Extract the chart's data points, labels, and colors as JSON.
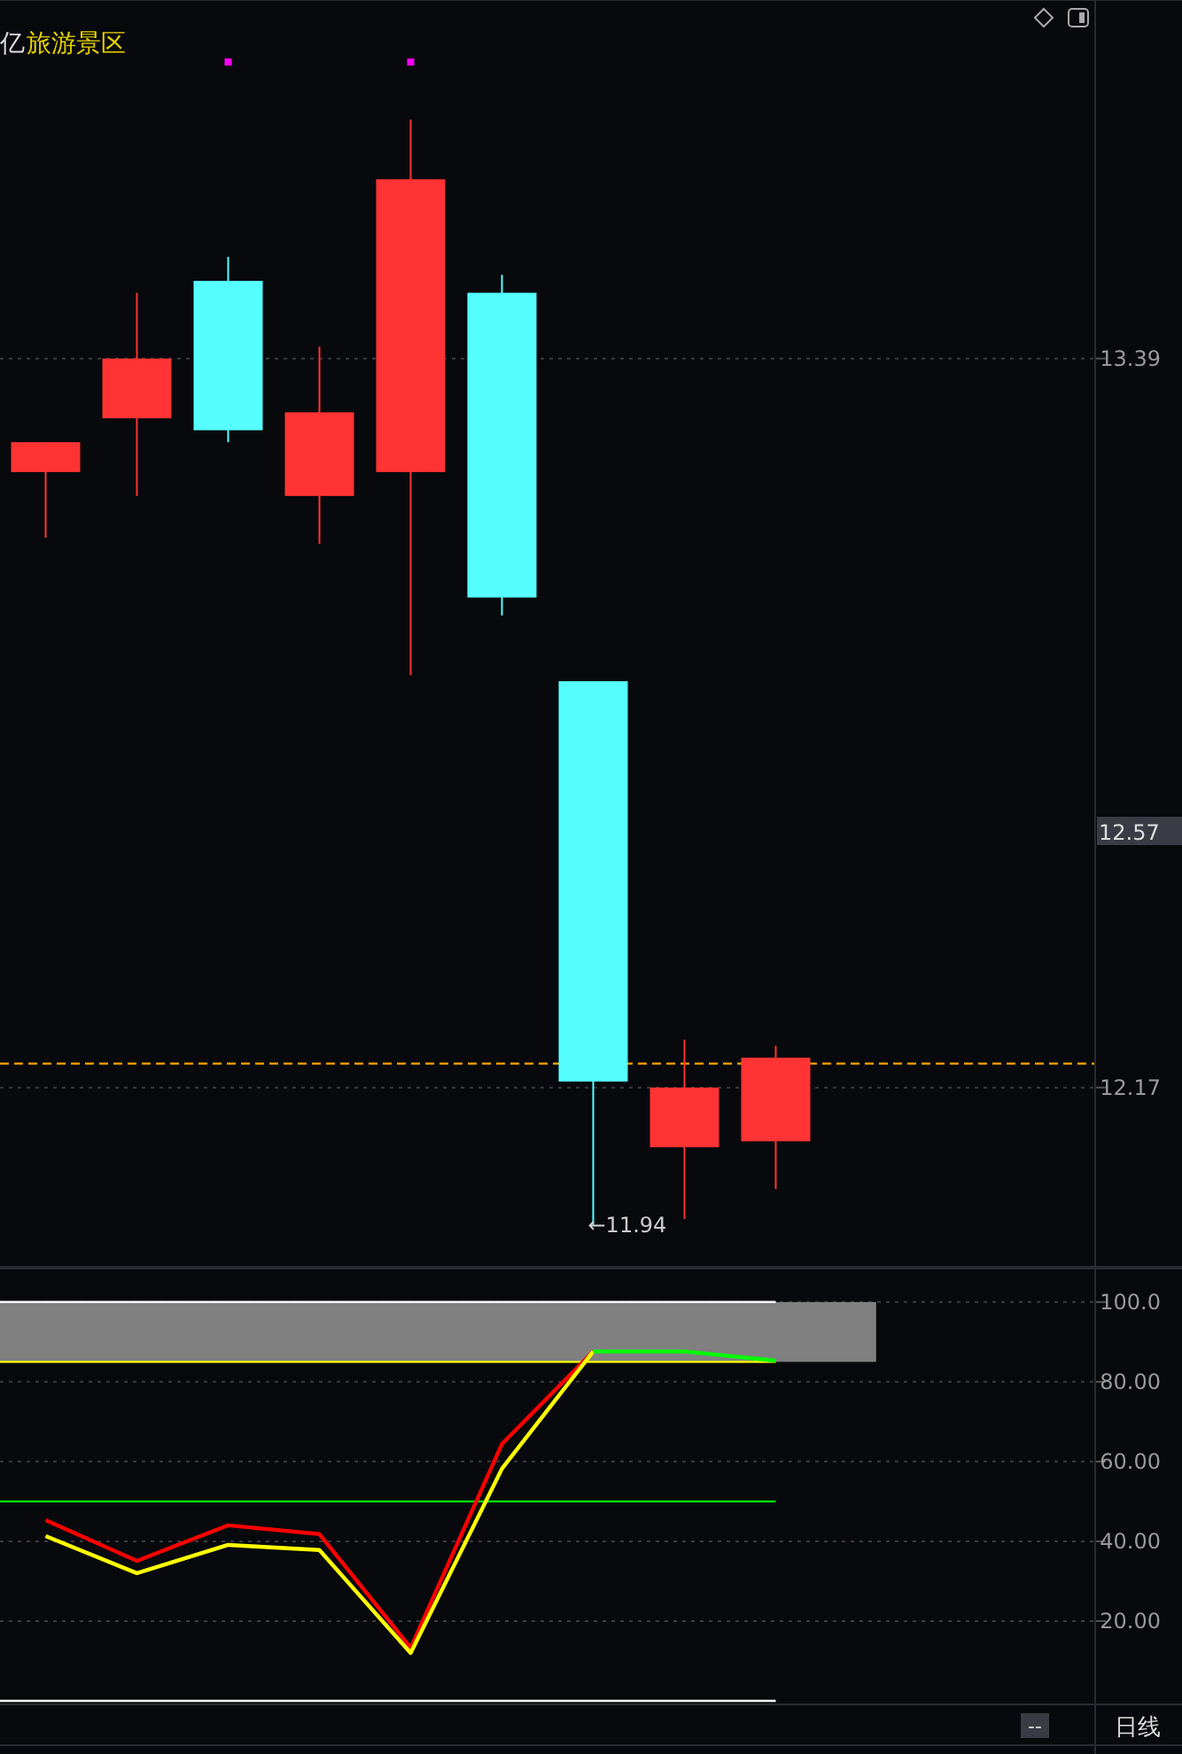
{
  "chart_data": [
    {
      "type": "candlestick",
      "title": "亿",
      "subtitle": "旅游景区",
      "categories": [
        null,
        null,
        null,
        null,
        null,
        null,
        null,
        null,
        null,
        null,
        null,
        null
      ],
      "ohlc": [
        [
          13.2,
          13.25,
          13.09,
          13.25
        ],
        [
          13.29,
          13.5,
          13.16,
          13.39
        ],
        [
          13.52,
          13.56,
          13.25,
          13.27
        ],
        [
          13.16,
          13.41,
          13.08,
          13.3
        ],
        [
          13.2,
          13.79,
          12.86,
          13.69
        ],
        [
          13.5,
          13.53,
          12.96,
          12.99
        ],
        [
          12.85,
          12.85,
          11.94,
          12.18
        ],
        [
          12.07,
          12.25,
          11.95,
          12.17
        ],
        [
          12.08,
          12.24,
          12.0,
          12.22
        ],
        null,
        null,
        null
      ],
      "colors": [
        "#ff3333",
        "#ff3333",
        "#55ffff",
        "#ff3333",
        "#ff3333",
        "#55ffff",
        "#55ffff",
        "#ff3333",
        "#ff3333",
        null,
        null,
        null
      ],
      "ylim": [
        11.87,
        13.99
      ],
      "yticks": [
        13.39,
        12.17
      ],
      "grid": "y",
      "tick_labels": "y",
      "ref_lines": [
        {
          "axis": "y",
          "value": 12.21,
          "color": "#ffa500",
          "line_style": "dashed"
        }
      ],
      "annotations": [
        "←11.94",
        "12.57"
      ]
    },
    {
      "type": "line",
      "categories": [
        null,
        null,
        null,
        null,
        null,
        null,
        null,
        null,
        null,
        null,
        null,
        null
      ],
      "marker": "none",
      "line_style": "solid",
      "series": [
        {
          "color": "#ff0000",
          "values": [
            45.3,
            35.1,
            44.0,
            41.8,
            13.3,
            64.4,
            87.6,
            null,
            null,
            null,
            null,
            null
          ]
        },
        {
          "color": "#ffff00",
          "values": [
            41.3,
            32.0,
            39.1,
            37.8,
            12.0,
            58.2,
            87.6,
            null,
            null,
            null,
            null,
            null
          ]
        },
        {
          "color": "#00ff00",
          "values": [
            null,
            null,
            null,
            null,
            null,
            null,
            87.6,
            87.6,
            85.3,
            null,
            null,
            null
          ]
        }
      ],
      "ylim": [
        -0.9,
        108.4
      ],
      "yticks": [
        {
          "value": 100,
          "label": "100.0"
        },
        {
          "value": 80,
          "label": "80.00"
        },
        {
          "value": 60,
          "label": "60.00"
        },
        {
          "value": 40,
          "label": "40.00"
        },
        {
          "value": 20,
          "label": "20.00"
        }
      ],
      "grid": "y",
      "tick_labels": "y",
      "bands": [
        {
          "axis": "y",
          "from": 85,
          "to": 100,
          "color": "#808080"
        }
      ],
      "ref_lines": [
        {
          "axis": "y",
          "value": 100,
          "color": "#ffffff"
        },
        {
          "axis": "y",
          "value": 0,
          "color": "#ffffff"
        },
        {
          "axis": "y",
          "value": 85,
          "color": "#ffff00"
        },
        {
          "axis": "y",
          "value": 50,
          "color": "#00ff00"
        }
      ],
      "annotations": [
        "--",
        "日线"
      ]
    }
  ]
}
